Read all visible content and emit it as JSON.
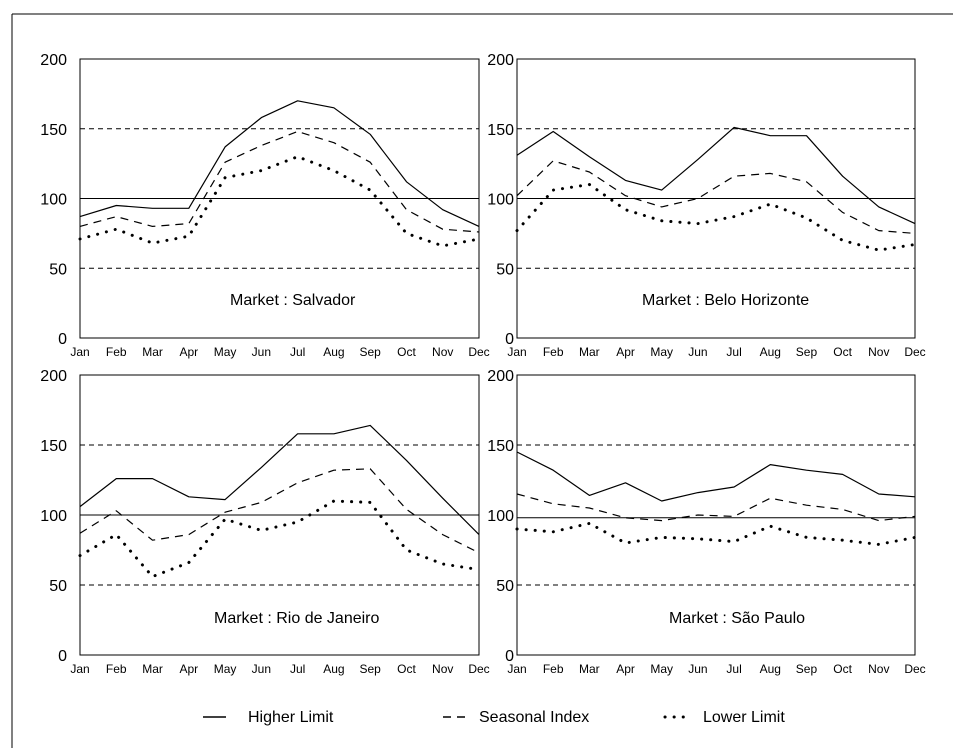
{
  "legend": {
    "higher": "Higher Limit",
    "seasonal": "Seasonal Index",
    "lower": "Lower Limit"
  },
  "chart_data": [
    {
      "type": "line",
      "title": "Market : Salvador",
      "categories": [
        "Jan",
        "Feb",
        "Mar",
        "Apr",
        "May",
        "Jun",
        "Jul",
        "Aug",
        "Sep",
        "Oct",
        "Nov",
        "Dec"
      ],
      "ylim": [
        0,
        200
      ],
      "yticks": [
        "0",
        "50",
        "100",
        "150",
        "200"
      ],
      "reference_lines": [
        50,
        100,
        150
      ],
      "series": [
        {
          "name": "Higher Limit",
          "values": [
            87,
            95,
            93,
            93,
            137,
            158,
            170,
            165,
            146,
            112,
            92,
            80
          ]
        },
        {
          "name": "Seasonal Index",
          "values": [
            80,
            87,
            80,
            82,
            126,
            138,
            148,
            140,
            126,
            92,
            78,
            76
          ]
        },
        {
          "name": "Lower Limit",
          "values": [
            71,
            78,
            68,
            73,
            115,
            120,
            130,
            120,
            106,
            75,
            66,
            71
          ]
        }
      ]
    },
    {
      "type": "line",
      "title": "Market : Belo Horizonte",
      "categories": [
        "Jan",
        "Feb",
        "Mar",
        "Apr",
        "May",
        "Jun",
        "Jul",
        "Aug",
        "Sep",
        "Oct",
        "Nov",
        "Dec"
      ],
      "ylim": [
        0,
        200
      ],
      "yticks": [
        "0",
        "50",
        "100",
        "150",
        "200"
      ],
      "reference_lines": [
        50,
        100,
        150
      ],
      "series": [
        {
          "name": "Higher Limit",
          "values": [
            131,
            148,
            130,
            113,
            106,
            128,
            151,
            145,
            145,
            116,
            94,
            82
          ]
        },
        {
          "name": "Seasonal Index",
          "values": [
            102,
            127,
            119,
            102,
            94,
            100,
            116,
            118,
            112,
            90,
            77,
            75
          ]
        },
        {
          "name": "Lower Limit",
          "values": [
            77,
            106,
            110,
            92,
            84,
            82,
            87,
            96,
            86,
            70,
            63,
            67
          ]
        }
      ]
    },
    {
      "type": "line",
      "title": "Market : Rio de Janeiro",
      "categories": [
        "Jan",
        "Feb",
        "Mar",
        "Apr",
        "May",
        "Jun",
        "Jul",
        "Aug",
        "Sep",
        "Oct",
        "Nov",
        "Dec"
      ],
      "ylim": [
        0,
        200
      ],
      "yticks": [
        "0",
        "50",
        "100",
        "150",
        "200"
      ],
      "reference_lines": [
        50,
        100,
        150
      ],
      "series": [
        {
          "name": "Higher Limit",
          "values": [
            106,
            126,
            126,
            113,
            111,
            134,
            158,
            158,
            164,
            139,
            112,
            86
          ]
        },
        {
          "name": "Seasonal Index",
          "values": [
            87,
            103,
            82,
            86,
            102,
            109,
            123,
            132,
            133,
            104,
            86,
            73
          ]
        },
        {
          "name": "Lower Limit",
          "values": [
            71,
            86,
            56,
            66,
            97,
            89,
            95,
            110,
            109,
            75,
            65,
            61
          ]
        }
      ]
    },
    {
      "type": "line",
      "title": "Market : São Paulo",
      "categories": [
        "Jan",
        "Feb",
        "Mar",
        "Apr",
        "May",
        "Jun",
        "Jul",
        "Aug",
        "Sep",
        "Oct",
        "Nov",
        "Dec"
      ],
      "ylim": [
        0,
        200
      ],
      "yticks": [
        "0",
        "50",
        "100",
        "150",
        "200"
      ],
      "reference_lines": [
        50,
        98,
        150
      ],
      "series": [
        {
          "name": "Higher Limit",
          "values": [
            145,
            132,
            114,
            123,
            110,
            116,
            120,
            136,
            132,
            129,
            115,
            113
          ]
        },
        {
          "name": "Seasonal Index",
          "values": [
            115,
            108,
            105,
            98,
            96,
            100,
            99,
            112,
            107,
            104,
            96,
            99
          ]
        },
        {
          "name": "Lower Limit",
          "values": [
            90,
            88,
            94,
            80,
            84,
            83,
            81,
            92,
            84,
            82,
            79,
            84
          ]
        }
      ]
    }
  ]
}
